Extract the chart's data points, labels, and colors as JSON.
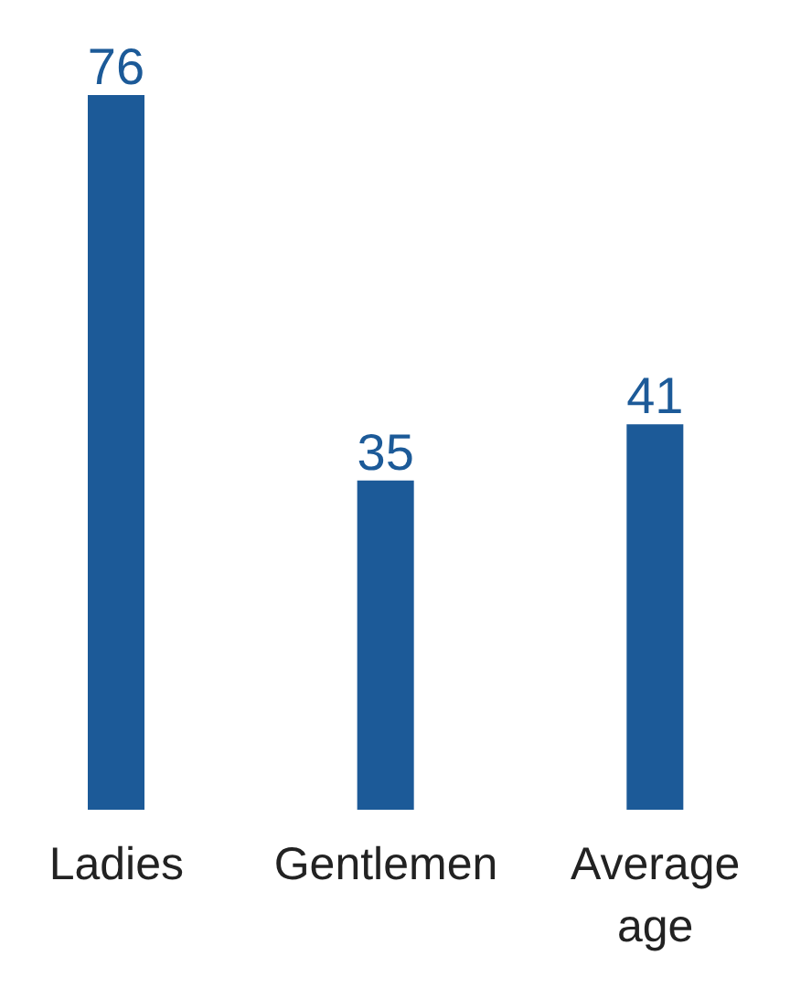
{
  "chart_data": {
    "type": "bar",
    "categories": [
      "Ladies",
      "Gentlemen",
      "Average age"
    ],
    "values": [
      76,
      35,
      41
    ],
    "color": "#1c5a98",
    "data_labels": true
  }
}
